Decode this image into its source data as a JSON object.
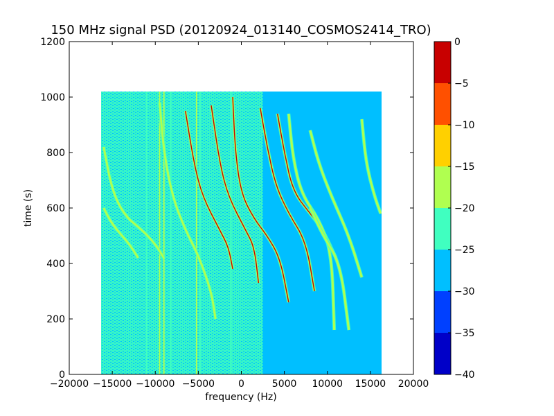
{
  "chart_data": {
    "type": "heatmap",
    "title": "150 MHz signal PSD (20120924_013140_COSMOS2414_TRO)",
    "xlabel": "frequency (Hz)",
    "ylabel": "time (s)",
    "xlim": [
      -20000,
      20000
    ],
    "ylim": [
      0,
      1200
    ],
    "xticks": [
      -20000,
      -15000,
      -10000,
      -5000,
      0,
      5000,
      10000,
      15000,
      20000
    ],
    "xtick_labels": [
      "−20000",
      "−15000",
      "−10000",
      "−5000",
      "0",
      "5000",
      "10000",
      "15000",
      "20000"
    ],
    "yticks": [
      0,
      200,
      400,
      600,
      800,
      1000,
      1200
    ],
    "ytick_labels": [
      "0",
      "200",
      "400",
      "600",
      "800",
      "1000",
      "1200"
    ],
    "data_extent": {
      "x": [
        -16300,
        16300
      ],
      "y": [
        0,
        1020
      ]
    },
    "background_level": -27.5,
    "colorbar": {
      "range": [
        -40,
        0
      ],
      "levels": [
        -40,
        -35,
        -30,
        -25,
        -20,
        -15,
        -10,
        -5,
        0
      ],
      "tick_labels": [
        "−40",
        "−35",
        "−30",
        "−25",
        "−20",
        "−15",
        "−10",
        "−5",
        "0"
      ],
      "colors": [
        "#0000c8",
        "#0040ff",
        "#00bfff",
        "#40ffc0",
        "#b0ff50",
        "#ffd000",
        "#ff5000",
        "#c80000"
      ]
    },
    "noise_bands": [
      {
        "x": [
          -16300,
          -9000
        ],
        "y": [
          0,
          1020
        ],
        "level": -22.5
      },
      {
        "x": [
          -9000,
          2500
        ],
        "y": [
          0,
          1020
        ],
        "level": -22.5
      }
    ],
    "vertical_lines": [
      {
        "x": -11000,
        "level": -22.5
      },
      {
        "x": -9500,
        "level": -17.5
      },
      {
        "x": -9000,
        "level": -17.5
      },
      {
        "x": -8200,
        "level": -22.5
      },
      {
        "x": -5200,
        "level": -17.5
      },
      {
        "x": -4800,
        "level": -22.5
      },
      {
        "x": -1200,
        "level": -22.5
      }
    ],
    "traces": [
      {
        "points": [
          [
            -16000,
            600
          ],
          [
            -15000,
            540
          ],
          [
            -13000,
            470
          ],
          [
            -12000,
            420
          ]
        ],
        "level": -17.5
      },
      {
        "points": [
          [
            -16000,
            820
          ],
          [
            -15000,
            660
          ],
          [
            -13500,
            570
          ],
          [
            -11500,
            520
          ],
          [
            -10000,
            470
          ],
          [
            -9000,
            420
          ]
        ],
        "level": -17.5
      },
      {
        "points": [
          [
            -9500,
            980
          ],
          [
            -9000,
            800
          ],
          [
            -8000,
            640
          ],
          [
            -6500,
            520
          ],
          [
            -5000,
            430
          ],
          [
            -3500,
            300
          ],
          [
            -3000,
            200
          ]
        ],
        "level": -17.5
      },
      {
        "points": [
          [
            -6500,
            950
          ],
          [
            -5500,
            760
          ],
          [
            -4500,
            640
          ],
          [
            -2500,
            520
          ],
          [
            -1500,
            460
          ],
          [
            -1000,
            380
          ]
        ],
        "level": -2.5
      },
      {
        "points": [
          [
            -3500,
            970
          ],
          [
            -2500,
            760
          ],
          [
            -1500,
            640
          ],
          [
            500,
            520
          ],
          [
            1500,
            460
          ],
          [
            2000,
            330
          ]
        ],
        "level": -2.5
      },
      {
        "points": [
          [
            -1000,
            1000
          ],
          [
            -700,
            800
          ],
          [
            0,
            650
          ],
          [
            1500,
            560
          ],
          [
            3000,
            500
          ],
          [
            4500,
            420
          ],
          [
            5500,
            260
          ]
        ],
        "level": -2.5
      },
      {
        "points": [
          [
            2200,
            960
          ],
          [
            3000,
            820
          ],
          [
            4000,
            680
          ],
          [
            5500,
            580
          ],
          [
            7500,
            480
          ],
          [
            8500,
            300
          ]
        ],
        "level": -2.5
      },
      {
        "points": [
          [
            4200,
            940
          ],
          [
            5000,
            800
          ],
          [
            6000,
            660
          ],
          [
            8000,
            580
          ],
          [
            9500,
            520
          ],
          [
            11000,
            420
          ]
        ],
        "level": -2.5
      },
      {
        "points": [
          [
            8000,
            880
          ],
          [
            9000,
            760
          ],
          [
            10500,
            640
          ],
          [
            12500,
            500
          ],
          [
            14000,
            350
          ]
        ],
        "level": -17.5
      },
      {
        "points": [
          [
            14000,
            920
          ],
          [
            14500,
            760
          ],
          [
            15500,
            640
          ],
          [
            16200,
            580
          ]
        ],
        "level": -17.5
      },
      {
        "points": [
          [
            5500,
            940
          ],
          [
            6000,
            780
          ],
          [
            7000,
            650
          ],
          [
            9000,
            560
          ],
          [
            10500,
            440
          ],
          [
            10800,
            160
          ]
        ],
        "level": -17.5
      },
      {
        "points": [
          [
            8000,
            600
          ],
          [
            9500,
            500
          ],
          [
            11500,
            400
          ],
          [
            12500,
            160
          ]
        ],
        "level": -17.5
      }
    ]
  }
}
